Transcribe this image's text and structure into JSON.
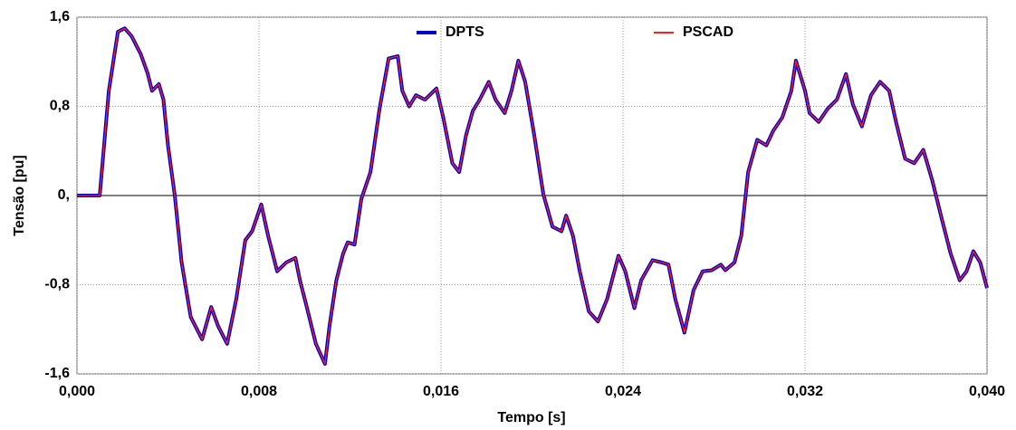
{
  "chart_data": {
    "type": "line",
    "xlabel": "Tempo [s]",
    "ylabel": "Tensão [pu]",
    "x": [
      0,
      0.001,
      0.0014,
      0.0018,
      0.0021,
      0.0024,
      0.0028,
      0.0031,
      0.0033,
      0.0036,
      0.0038,
      0.004,
      0.0043,
      0.0046,
      0.005,
      0.0055,
      0.0059,
      0.0062,
      0.0066,
      0.007,
      0.0074,
      0.0077,
      0.0081,
      0.0084,
      0.0088,
      0.0092,
      0.0096,
      0.0098,
      0.0101,
      0.0105,
      0.0109,
      0.0111,
      0.0114,
      0.0117,
      0.0119,
      0.0122,
      0.0125,
      0.0129,
      0.0133,
      0.0137,
      0.0141,
      0.0143,
      0.0146,
      0.0149,
      0.0153,
      0.0158,
      0.0161,
      0.0165,
      0.0168,
      0.0171,
      0.0174,
      0.0177,
      0.0181,
      0.0184,
      0.0188,
      0.0191,
      0.0194,
      0.0197,
      0.0201,
      0.0205,
      0.0209,
      0.0213,
      0.0215,
      0.0218,
      0.0221,
      0.0225,
      0.0229,
      0.0233,
      0.0238,
      0.0241,
      0.0245,
      0.0248,
      0.0253,
      0.0257,
      0.026,
      0.0263,
      0.0267,
      0.0271,
      0.0275,
      0.0279,
      0.0283,
      0.0285,
      0.0289,
      0.0292,
      0.0295,
      0.0299,
      0.0303,
      0.0306,
      0.031,
      0.0314,
      0.0316,
      0.032,
      0.0322,
      0.0326,
      0.033,
      0.0334,
      0.0338,
      0.0341,
      0.0345,
      0.0349,
      0.0353,
      0.0357,
      0.036,
      0.0364,
      0.0368,
      0.0372,
      0.0376,
      0.038,
      0.0384,
      0.0388,
      0.0391,
      0.0394,
      0.0397,
      0.04
    ],
    "series": [
      {
        "name": "DPTS",
        "color": "#0000c8",
        "values": [
          0,
          0,
          0.94,
          1.47,
          1.5,
          1.43,
          1.27,
          1.1,
          0.94,
          1,
          0.86,
          0.45,
          0,
          -0.6,
          -1.09,
          -1.29,
          -1,
          -1.17,
          -1.33,
          -0.93,
          -0.4,
          -0.32,
          -0.08,
          -0.36,
          -0.68,
          -0.6,
          -0.56,
          -0.76,
          -1,
          -1.33,
          -1.51,
          -1.17,
          -0.76,
          -0.52,
          -0.42,
          -0.44,
          -0.03,
          0.21,
          0.78,
          1.23,
          1.25,
          0.94,
          0.8,
          0.9,
          0.86,
          0.96,
          0.7,
          0.29,
          0.21,
          0.54,
          0.76,
          0.86,
          1.02,
          0.86,
          0.74,
          0.94,
          1.21,
          1.02,
          0.54,
          0.01,
          -0.28,
          -0.32,
          -0.18,
          -0.36,
          -0.68,
          -1.04,
          -1.13,
          -0.93,
          -0.54,
          -0.68,
          -1.01,
          -0.76,
          -0.58,
          -0.6,
          -0.62,
          -0.93,
          -1.23,
          -0.85,
          -0.68,
          -0.67,
          -0.62,
          -0.67,
          -0.6,
          -0.36,
          0.21,
          0.5,
          0.45,
          0.58,
          0.7,
          0.94,
          1.21,
          0.94,
          0.74,
          0.66,
          0.78,
          0.86,
          1.09,
          0.82,
          0.62,
          0.9,
          1.02,
          0.94,
          0.66,
          0.33,
          0.29,
          0.41,
          0.13,
          -0.2,
          -0.52,
          -0.76,
          -0.68,
          -0.5,
          -0.6,
          -0.83
        ]
      },
      {
        "name": "PSCAD",
        "color": "#ff2020",
        "values": [
          0,
          0,
          0.94,
          1.47,
          1.5,
          1.43,
          1.27,
          1.1,
          0.94,
          1,
          0.86,
          0.45,
          0,
          -0.6,
          -1.09,
          -1.29,
          -1,
          -1.17,
          -1.33,
          -0.93,
          -0.4,
          -0.32,
          -0.08,
          -0.36,
          -0.68,
          -0.6,
          -0.56,
          -0.76,
          -1,
          -1.33,
          -1.51,
          -1.17,
          -0.76,
          -0.52,
          -0.42,
          -0.44,
          -0.03,
          0.21,
          0.78,
          1.23,
          1.25,
          0.94,
          0.8,
          0.9,
          0.86,
          0.96,
          0.7,
          0.29,
          0.21,
          0.54,
          0.76,
          0.86,
          1.02,
          0.86,
          0.74,
          0.94,
          1.21,
          1.02,
          0.54,
          0.01,
          -0.28,
          -0.32,
          -0.18,
          -0.36,
          -0.68,
          -1.04,
          -1.13,
          -0.93,
          -0.54,
          -0.68,
          -1.01,
          -0.76,
          -0.58,
          -0.6,
          -0.62,
          -0.93,
          -1.23,
          -0.85,
          -0.68,
          -0.67,
          -0.62,
          -0.67,
          -0.6,
          -0.36,
          0.21,
          0.5,
          0.45,
          0.58,
          0.7,
          0.94,
          1.21,
          0.94,
          0.74,
          0.66,
          0.78,
          0.86,
          1.09,
          0.82,
          0.62,
          0.9,
          1.02,
          0.94,
          0.66,
          0.33,
          0.29,
          0.41,
          0.13,
          -0.2,
          -0.52,
          -0.76,
          -0.68,
          -0.5,
          -0.6,
          -0.83
        ]
      }
    ],
    "xlim": [
      0,
      0.04
    ],
    "xticks": [
      {
        "value": 0,
        "label": "0,000"
      },
      {
        "value": 0.008,
        "label": "0,008"
      },
      {
        "value": 0.016,
        "label": "0,016"
      },
      {
        "value": 0.024,
        "label": "0,024"
      },
      {
        "value": 0.032,
        "label": "0,032"
      },
      {
        "value": 0.04,
        "label": "0,040"
      }
    ],
    "ylim": [
      -1.6,
      1.6
    ],
    "yticks": [
      {
        "value": -1.6,
        "label": "-1,6"
      },
      {
        "value": -0.8,
        "label": "-0,8"
      },
      {
        "value": 0,
        "label": "0,"
      },
      {
        "value": 0.8,
        "label": "0,8"
      },
      {
        "value": 1.6,
        "label": "1,6"
      }
    ],
    "grid": true,
    "legend": "top"
  }
}
